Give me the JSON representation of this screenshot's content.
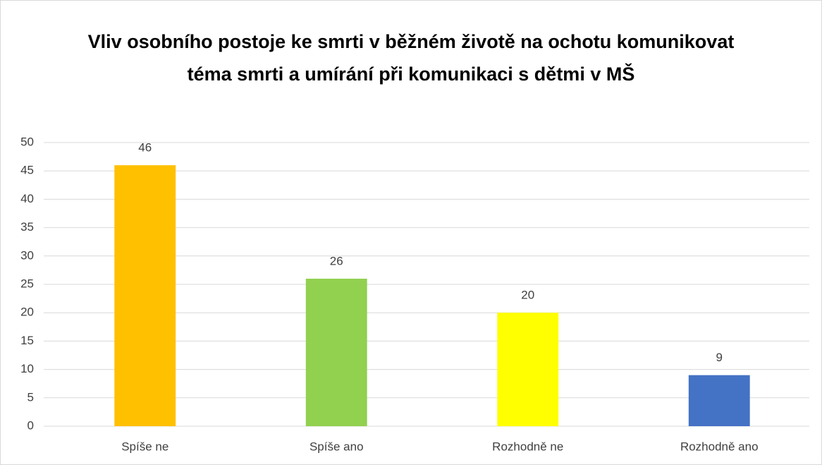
{
  "chart_data": {
    "type": "bar",
    "title": "Vliv osobního postoje ke smrti v běžném životě na ochotu komunikovat téma smrti a umírání při komunikaci s dětmi v MŠ",
    "categories": [
      "Spíše ne",
      "Spíše ano",
      "Rozhodně ne",
      "Rozhodně ano"
    ],
    "values": [
      46,
      26,
      20,
      9
    ],
    "colors": [
      "#ffc000",
      "#92d050",
      "#ffff00",
      "#4472c4"
    ],
    "ylim": [
      0,
      50
    ],
    "yticks": [
      0,
      5,
      10,
      15,
      20,
      25,
      30,
      35,
      40,
      45,
      50
    ],
    "grid": true
  }
}
